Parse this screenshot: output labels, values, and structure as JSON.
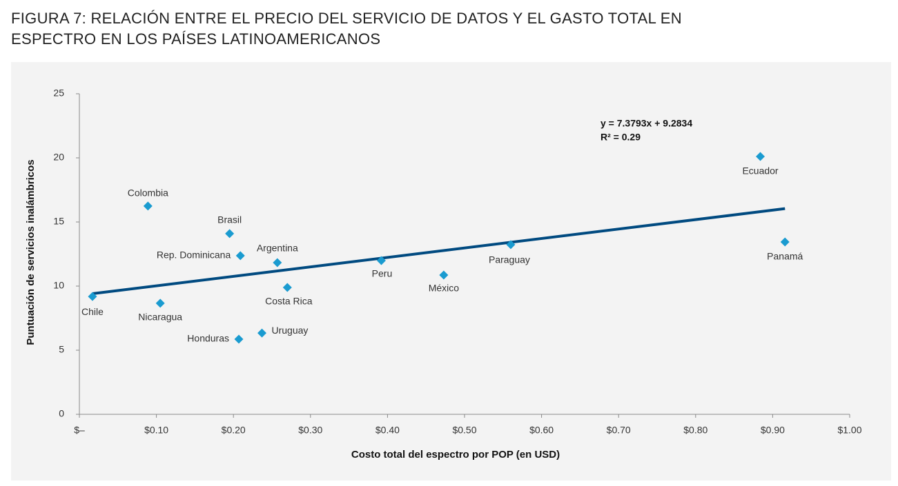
{
  "chart_data": {
    "type": "scatter",
    "title": "FIGURA 7: RELACIÓN ENTRE EL PRECIO DEL SERVICIO DE DATOS Y EL GASTO TOTAL EN ESPECTRO EN LOS PAÍSES LATINOAMERICANOS",
    "x_label": "Costo total del espectro por POP (en USD)",
    "y_label": "Puntuación de servicios inalámbricos",
    "equation": "y = 7.3793x + 9.2834",
    "r_squared": "R² = 0.29",
    "categories": [
      "Chile",
      "Colombia",
      "Brasil",
      "Rep. Dominicana",
      "Argentina",
      "Costa Rica",
      "Nicaragua",
      "Honduras",
      "Uruguay",
      "Peru",
      "México",
      "Paraguay",
      "Ecuador",
      "Panamá"
    ],
    "x": [
      0.017,
      0.089,
      0.195,
      0.209,
      0.257,
      0.27,
      0.105,
      0.207,
      0.237,
      0.392,
      0.473,
      0.56,
      0.884,
      0.916
    ],
    "values": [
      9.19,
      16.24,
      14.09,
      12.37,
      11.83,
      9.89,
      8.66,
      5.86,
      6.34,
      11.99,
      10.86,
      13.23,
      20.11,
      13.44
    ],
    "color": "#1a9bd0",
    "trendline": {
      "x": [
        0.017,
        0.916
      ],
      "values": [
        9.41,
        16.04
      ],
      "color": "#004a80"
    },
    "xlim": [
      0,
      1
    ],
    "xticks": [
      {
        "value": 0,
        "label": "$–"
      },
      {
        "value": 0.1,
        "label": "$0.10"
      },
      {
        "value": 0.2,
        "label": "$0.20"
      },
      {
        "value": 0.3,
        "label": "$0.30"
      },
      {
        "value": 0.4,
        "label": "$0.40"
      },
      {
        "value": 0.5,
        "label": "$0.50"
      },
      {
        "value": 0.6,
        "label": "$0.60"
      },
      {
        "value": 0.7,
        "label": "$0.70"
      },
      {
        "value": 0.8,
        "label": "$0.80"
      },
      {
        "value": 0.9,
        "label": "$0.90"
      },
      {
        "value": 1,
        "label": "$1.00"
      }
    ],
    "ylim": [
      0,
      25
    ],
    "yticks": [
      0,
      5,
      10,
      15,
      20,
      25
    ],
    "grid": false
  }
}
